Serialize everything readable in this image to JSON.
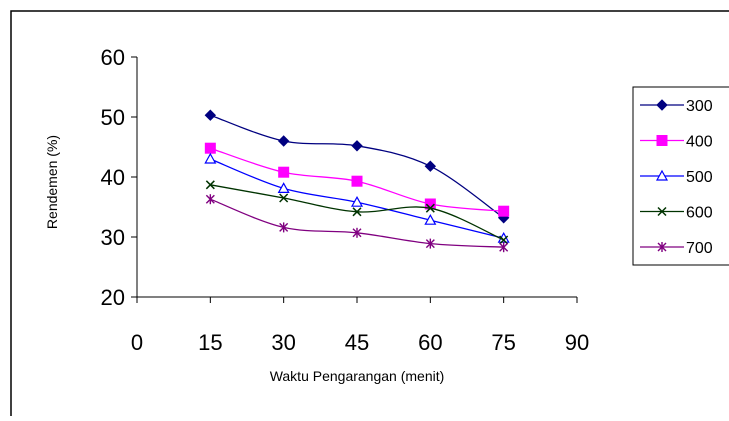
{
  "chart_data": {
    "type": "line",
    "xlabel": "Waktu Pengarangan (menit)",
    "ylabel": "Rendemen (%)",
    "xlim": [
      0,
      90
    ],
    "ylim": [
      20,
      60
    ],
    "x_ticks": [
      "0",
      "15",
      "30",
      "45",
      "60",
      "75",
      "90"
    ],
    "y_ticks": [
      "20",
      "30",
      "40",
      "50",
      "60"
    ],
    "x": [
      15,
      30,
      45,
      60,
      75
    ],
    "grid": false,
    "legend_position": "right",
    "series": [
      {
        "name": "300",
        "color": "#000080",
        "marker": "diamond",
        "values": [
          50.3,
          46.0,
          45.2,
          41.8,
          33.2
        ]
      },
      {
        "name": "400",
        "color": "#FF00FF",
        "marker": "square",
        "values": [
          44.8,
          40.8,
          39.3,
          35.5,
          34.3
        ]
      },
      {
        "name": "500",
        "color": "#0000FF",
        "marker": "triangle",
        "values": [
          43.0,
          38.1,
          35.8,
          32.8,
          29.8
        ]
      },
      {
        "name": "600",
        "color": "#003300",
        "marker": "x",
        "values": [
          38.7,
          36.5,
          34.2,
          34.8,
          29.5
        ]
      },
      {
        "name": "700",
        "color": "#800080",
        "marker": "star",
        "values": [
          36.3,
          31.6,
          30.7,
          28.9,
          28.3
        ]
      }
    ]
  }
}
